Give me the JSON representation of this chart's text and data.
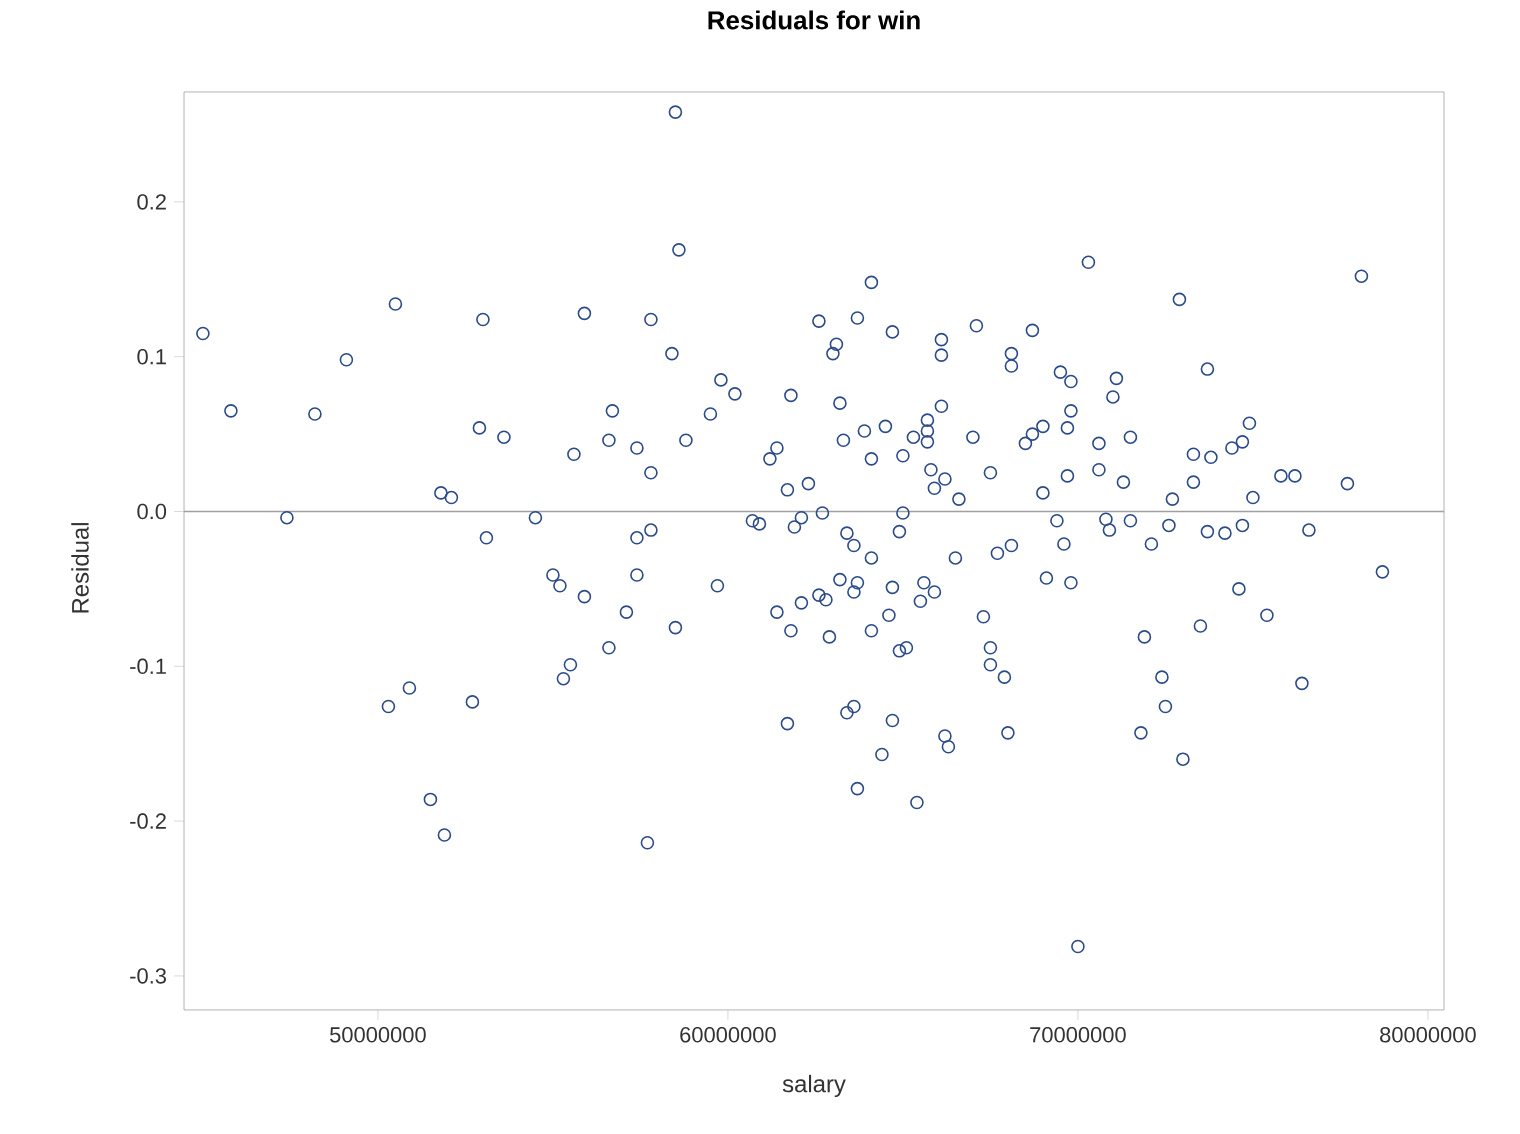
{
  "chart_data": {
    "type": "scatter",
    "title": "Residuals for win",
    "xlabel": "salary",
    "ylabel": "Residual",
    "color": "#2b4a8a",
    "marker": "circle",
    "xlim": [
      44460000,
      80460000
    ],
    "ylim": [
      -0.322,
      0.271
    ],
    "xticks": [
      50000000,
      60000000,
      70000000,
      80000000
    ],
    "yticks": [
      -0.3,
      -0.2,
      -0.1,
      {
        "value": 0,
        "label": "0.0"
      },
      0.1,
      0.2
    ],
    "ref_lines": [
      {
        "axis": "y",
        "value": 0,
        "color": "#a0a0a0"
      }
    ],
    "x": [
      45000000,
      45800000,
      47400000,
      48200000,
      49100000,
      50500000,
      53000000,
      52900000,
      53600000,
      51800000,
      52100000,
      53100000,
      54500000,
      55000000,
      55200000,
      55900000,
      55600000,
      55900000,
      56600000,
      56700000,
      56600000,
      58500000,
      58600000,
      57800000,
      58400000,
      64100000,
      62600000,
      63700000,
      64700000,
      63100000,
      63000000,
      59800000,
      60200000,
      61800000,
      63200000,
      59500000,
      57400000,
      58800000,
      57800000,
      61400000,
      61200000,
      63300000,
      63900000,
      64500000,
      64100000,
      65000000,
      65300000,
      61700000,
      62300000,
      60700000,
      60900000,
      61900000,
      62100000,
      62700000,
      65000000,
      64900000,
      57400000,
      57800000,
      63400000,
      63600000,
      64100000,
      57400000,
      59700000,
      63200000,
      63700000,
      63600000,
      64700000,
      62600000,
      62800000,
      62100000,
      61400000,
      57100000,
      58500000,
      61800000,
      62900000,
      64100000,
      64600000,
      64900000,
      65100000,
      70300000,
      72900000,
      67100000,
      68700000,
      66100000,
      66100000,
      68100000,
      68100000,
      69500000,
      69800000,
      71100000,
      71000000,
      66100000,
      69800000,
      65700000,
      65700000,
      65700000,
      69000000,
      69700000,
      67000000,
      68700000,
      68500000,
      70600000,
      71500000,
      65800000,
      67500000,
      70600000,
      69700000,
      66200000,
      65900000,
      71300000,
      66600000,
      69000000,
      72700000,
      69400000,
      70800000,
      70900000,
      71500000,
      72600000,
      72100000,
      69600000,
      68100000,
      67700000,
      66500000,
      65600000,
      65900000,
      65500000,
      69100000,
      69800000,
      67300000,
      67500000,
      71900000,
      78100000,
      73700000,
      74900000,
      74700000,
      74400000,
      73300000,
      73800000,
      75800000,
      76200000,
      77700000,
      73300000,
      75000000,
      73700000,
      74200000,
      74700000,
      76600000,
      78700000,
      74600000,
      75400000,
      73500000,
      55500000,
      55300000,
      50900000,
      50300000,
      52700000,
      67500000,
      67900000,
      72400000,
      72500000,
      71800000,
      73000000,
      76400000,
      61700000,
      63400000,
      63600000,
      64700000,
      66200000,
      66300000,
      68000000,
      64400000,
      57700000,
      51500000,
      51900000,
      63700000,
      65400000,
      70000000
    ],
    "values": [
      0.115,
      0.065,
      -0.004,
      0.063,
      0.098,
      0.134,
      0.124,
      0.054,
      0.048,
      0.012,
      0.009,
      -0.017,
      -0.004,
      -0.041,
      -0.048,
      -0.055,
      0.037,
      0.128,
      0.046,
      0.065,
      -0.088,
      0.258,
      0.169,
      0.124,
      0.102,
      0.148,
      0.123,
      0.125,
      0.116,
      0.108,
      0.102,
      0.085,
      0.076,
      0.075,
      0.07,
      0.063,
      0.041,
      0.046,
      0.025,
      0.041,
      0.034,
      0.046,
      0.052,
      0.055,
      0.034,
      0.036,
      0.048,
      0.014,
      0.018,
      -0.006,
      -0.008,
      -0.01,
      -0.004,
      -0.001,
      -0.001,
      -0.013,
      -0.017,
      -0.012,
      -0.014,
      -0.022,
      -0.03,
      -0.041,
      -0.048,
      -0.044,
      -0.046,
      -0.052,
      -0.049,
      -0.054,
      -0.057,
      -0.059,
      -0.065,
      -0.065,
      -0.075,
      -0.077,
      -0.081,
      -0.077,
      -0.067,
      -0.09,
      -0.088,
      0.161,
      0.137,
      0.12,
      0.117,
      0.111,
      0.101,
      0.102,
      0.094,
      0.09,
      0.084,
      0.086,
      0.074,
      0.068,
      0.065,
      0.059,
      0.052,
      0.045,
      0.055,
      0.054,
      0.048,
      0.05,
      0.044,
      0.044,
      0.048,
      0.027,
      0.025,
      0.027,
      0.023,
      0.021,
      0.015,
      0.019,
      0.008,
      0.012,
      0.008,
      -0.006,
      -0.005,
      -0.012,
      -0.006,
      -0.009,
      -0.021,
      -0.021,
      -0.022,
      -0.027,
      -0.03,
      -0.046,
      -0.052,
      -0.058,
      -0.043,
      -0.046,
      -0.068,
      -0.088,
      -0.081,
      0.152,
      0.092,
      0.057,
      0.045,
      0.041,
      0.037,
      0.035,
      0.023,
      0.023,
      0.018,
      0.019,
      0.009,
      -0.013,
      -0.014,
      -0.009,
      -0.012,
      -0.039,
      -0.05,
      -0.067,
      -0.074,
      -0.099,
      -0.108,
      -0.114,
      -0.126,
      -0.123,
      -0.099,
      -0.107,
      -0.107,
      -0.126,
      -0.143,
      -0.16,
      -0.111,
      -0.137,
      -0.13,
      -0.126,
      -0.135,
      -0.145,
      -0.152,
      -0.143,
      -0.157,
      -0.214,
      -0.186,
      -0.209,
      -0.179,
      -0.188,
      -0.281
    ]
  }
}
